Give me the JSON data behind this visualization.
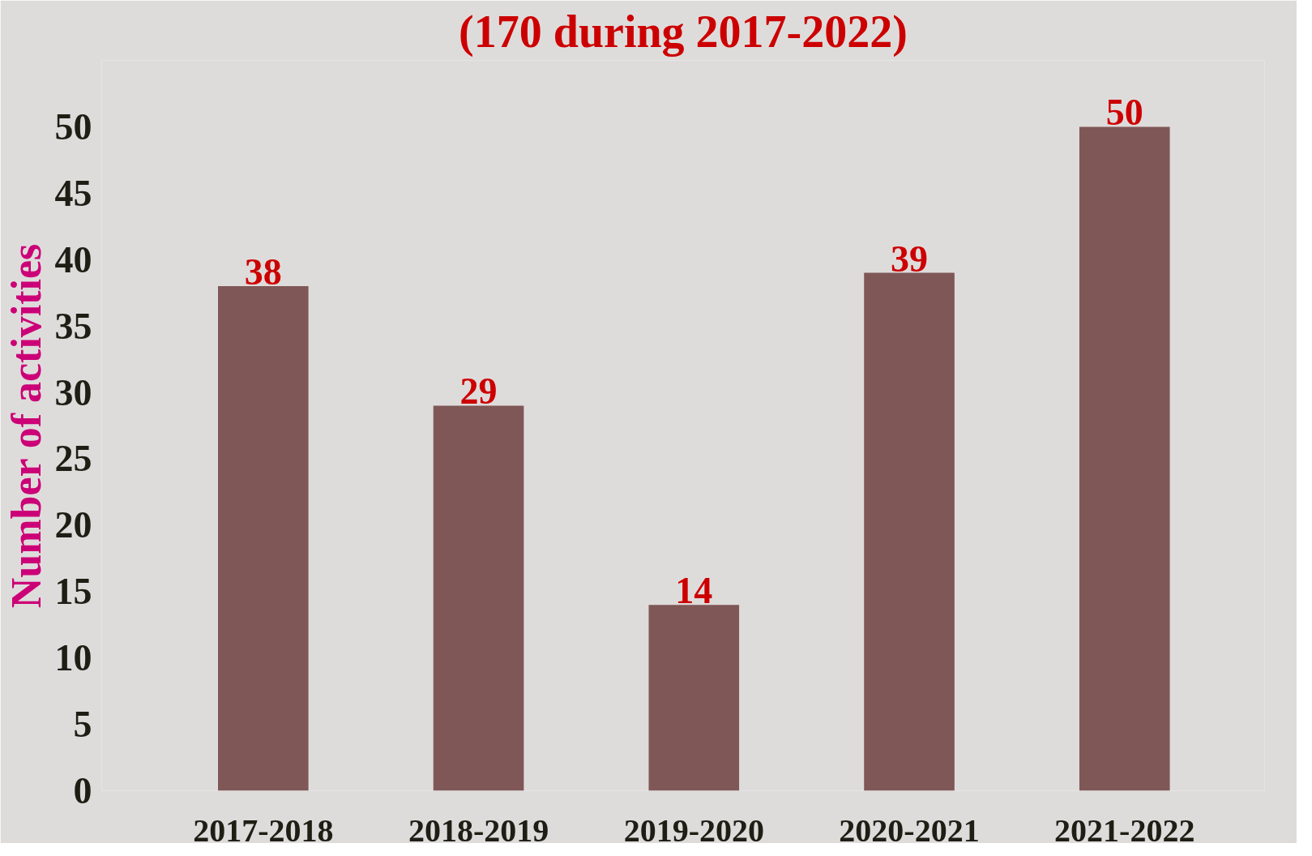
{
  "chart_data": {
    "type": "bar",
    "title": "(170 during 2017-2022)",
    "ylabel": "Number of activities",
    "categories": [
      "2017-2018",
      "2018-2019",
      "2019-2020",
      "2020-2021",
      "2021-2022"
    ],
    "values": [
      38,
      29,
      14,
      39,
      50
    ],
    "color": "#7f5757",
    "data_labels": true,
    "ylim": [
      0,
      55
    ],
    "yticks": [
      0,
      5,
      10,
      15,
      20,
      25,
      30,
      35,
      40,
      45,
      50
    ]
  }
}
